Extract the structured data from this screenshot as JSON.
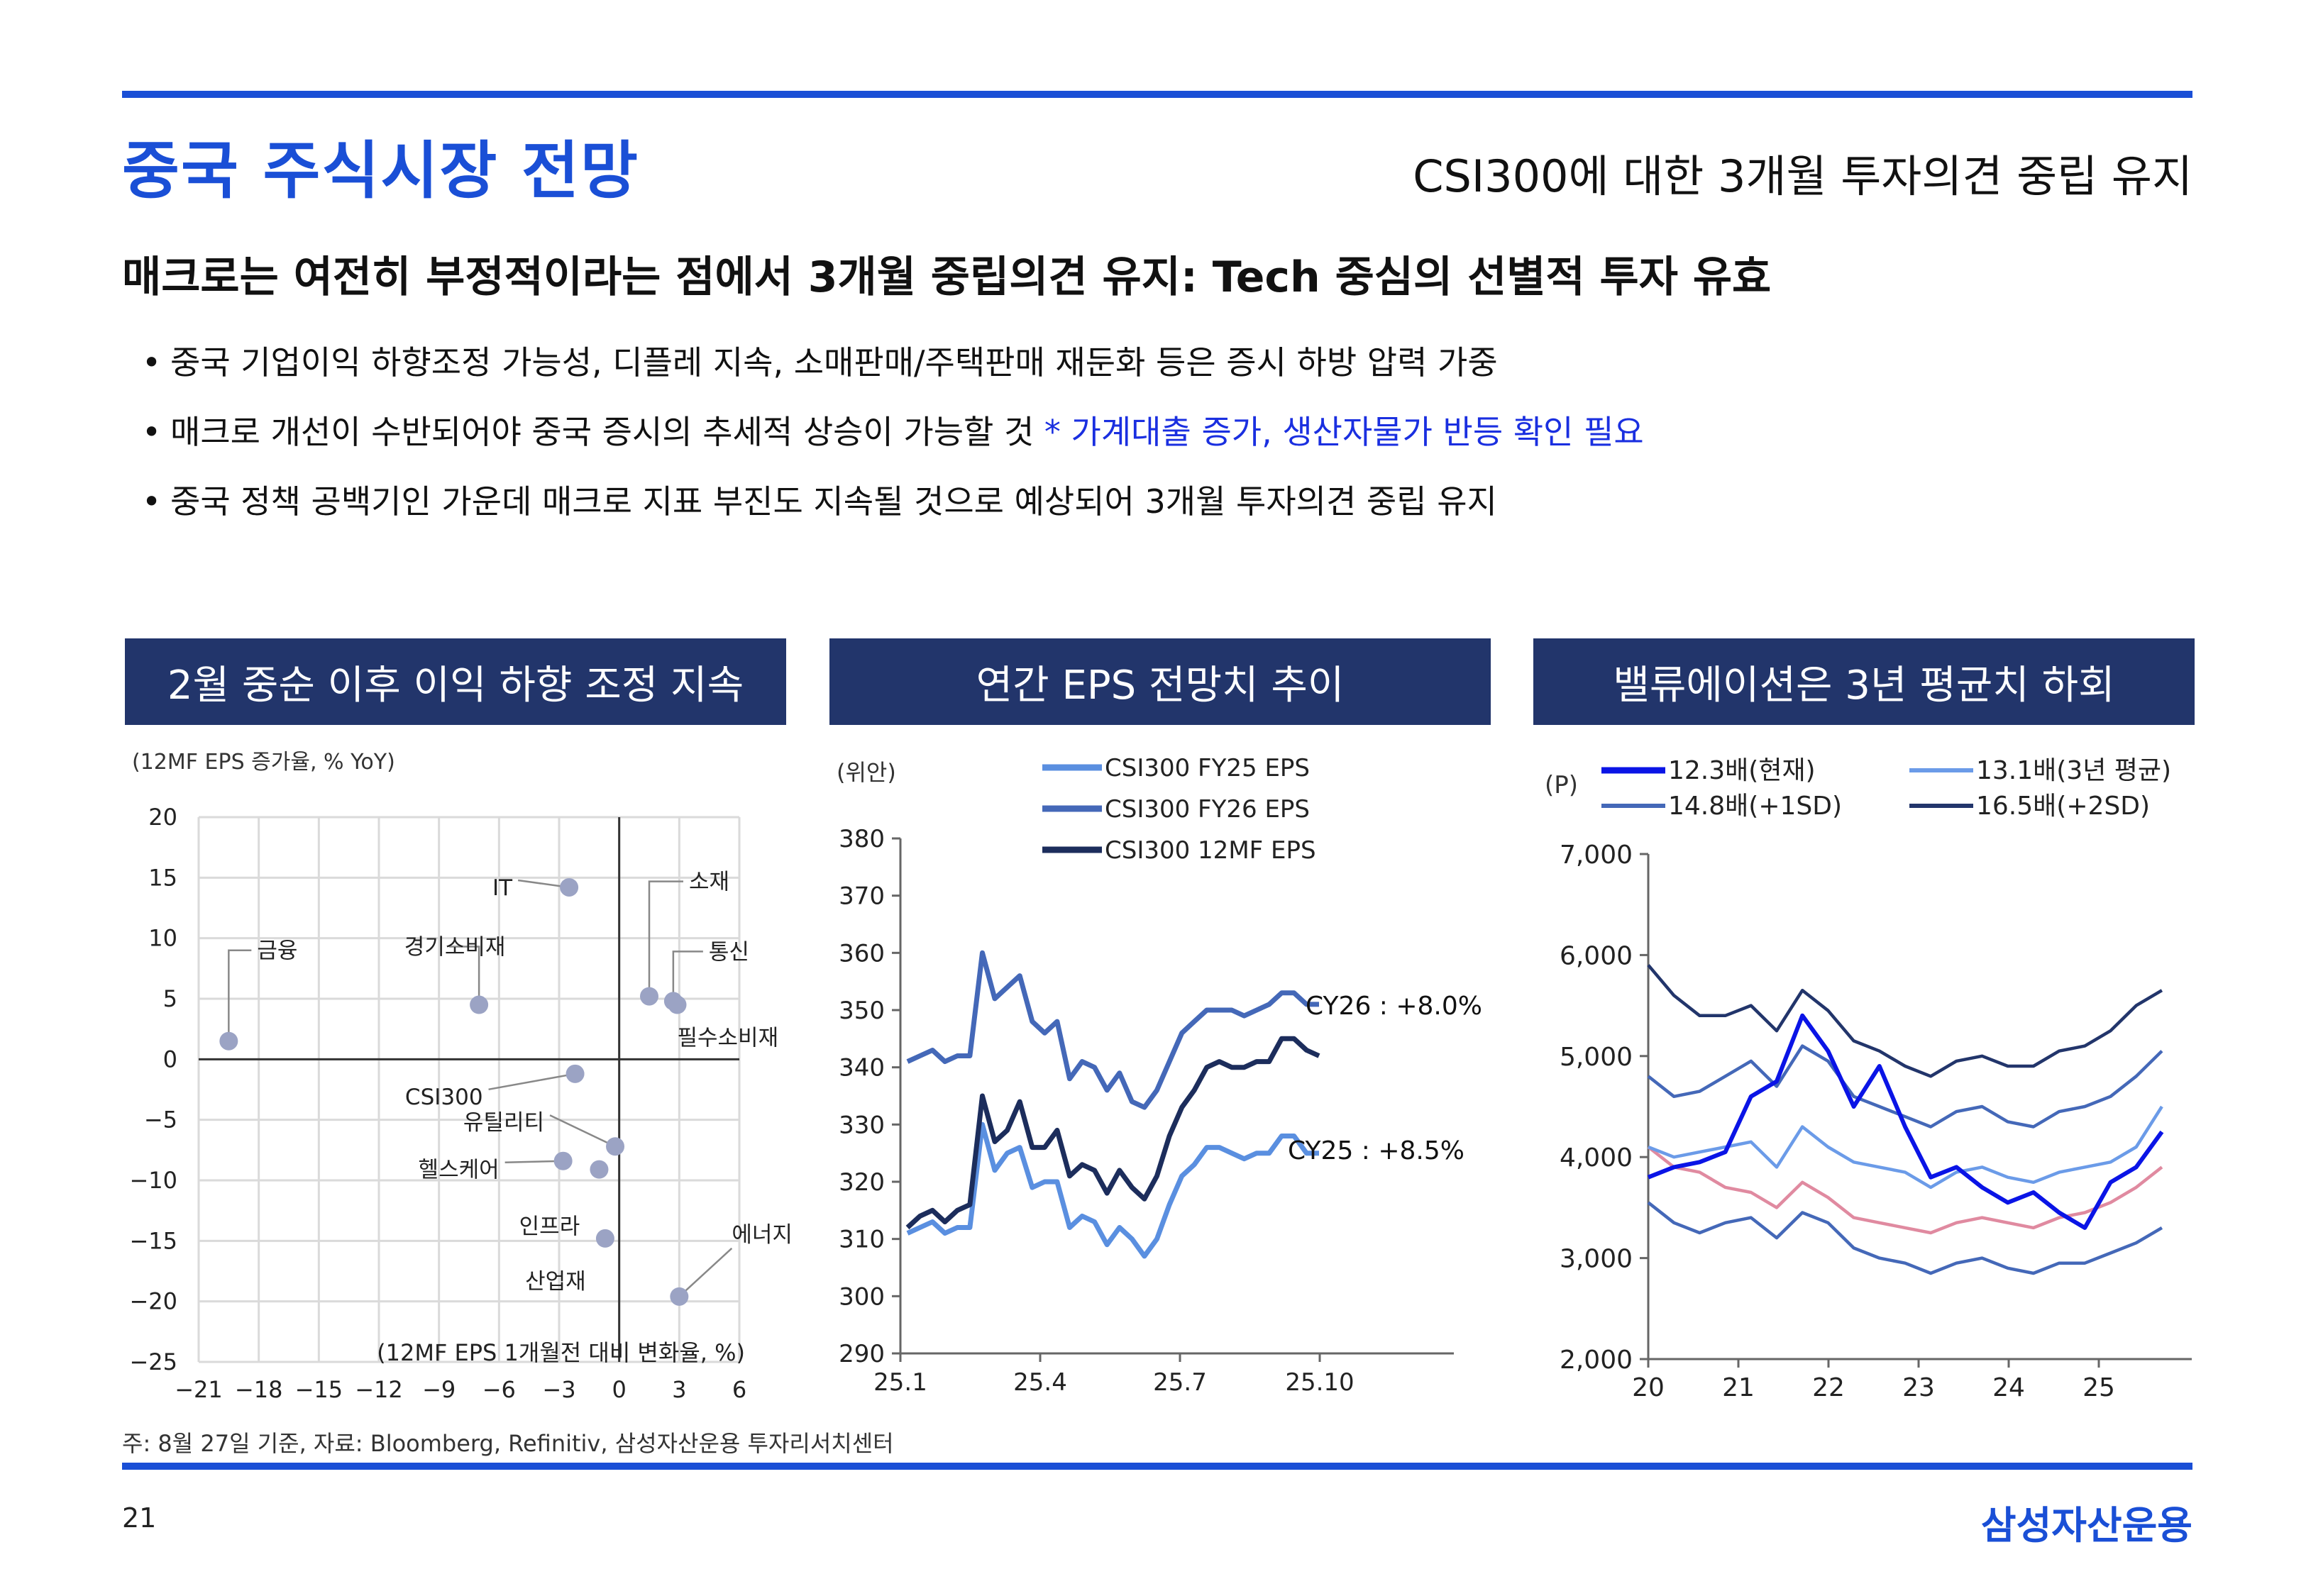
{
  "header": {
    "title": "중국 주식시장 전망",
    "subtitle": "CSI300에 대한 3개월 투자의견 중립 유지"
  },
  "headline": "매크로는 여전히 부정적이라는 점에서 3개월 중립의견 유지: Tech 중심의 선별적 투자 유효",
  "bullets": [
    {
      "text": "중국 기업이익 하향조정 가능성, 디플레 지속,  소매판매/주택판매 재둔화 등은 증시 하방 압력 가중",
      "highlight": ""
    },
    {
      "text": "매크로 개선이 수반되어야 중국 증시의 추세적 상승이 가능할 것 ",
      "highlight": "* 가계대출 증가, 생산자물가 반등 확인 필요"
    },
    {
      "text": "중국 정책 공백기인 가운데 매크로 지표 부진도 지속될 것으로 예상되어 3개월 투자의견 중립 유지",
      "highlight": ""
    }
  ],
  "panels": {
    "p1_title": "2월 중순 이후 이익 하향 조정 지속",
    "p2_title": "연간 EPS 전망치 추이",
    "p3_title": "밸류에이션은 3년 평균치 하회"
  },
  "colors": {
    "accent": "#1a4fd6",
    "panel_header": "#22356b",
    "highlight_text": "#1a2fe0",
    "scatter_point": "#9ba3c4"
  },
  "footer": {
    "note": "주: 8월 27일 기준, 자료: Bloomberg, Refinitiv, 삼성자산운용 투자리서치센터",
    "page_number": "21",
    "brand": "삼성자산운용"
  },
  "chart_data": [
    {
      "type": "scatter",
      "title": "2월 중순 이후 이익 하향 조정 지속",
      "ylabel": "(12MF EPS 증가율, % YoY)",
      "xlabel": "(12MF EPS 1개월전 대비 변화율, %)",
      "xlim": [
        -21,
        6
      ],
      "ylim": [
        -25,
        20
      ],
      "xticks": [
        -21,
        -18,
        -15,
        -12,
        -9,
        -6,
        -3,
        0,
        3,
        6
      ],
      "yticks": [
        20,
        15,
        10,
        5,
        0,
        -5,
        -10,
        -15,
        -20,
        -25
      ],
      "grid": true,
      "points": [
        {
          "label": "금융",
          "x": -19.5,
          "y": 1.5
        },
        {
          "label": "경기소비재",
          "x": -7.0,
          "y": 4.5
        },
        {
          "label": "IT",
          "x": -2.5,
          "y": 14.2
        },
        {
          "label": "소재",
          "x": 1.5,
          "y": 5.2
        },
        {
          "label": "통신",
          "x": 2.7,
          "y": 4.8
        },
        {
          "label": "필수소비재",
          "x": 2.9,
          "y": 4.5
        },
        {
          "label": "CSI300",
          "x": -2.2,
          "y": -1.2
        },
        {
          "label": "유틸리티",
          "x": -0.2,
          "y": -7.2
        },
        {
          "label": "헬스케어",
          "x": -2.8,
          "y": -8.4
        },
        {
          "label": "인프라",
          "x": -1.0,
          "y": -9.1
        },
        {
          "label": "산업재",
          "x": -0.7,
          "y": -14.8
        },
        {
          "label": "에너지",
          "x": 3.0,
          "y": -19.6
        }
      ]
    },
    {
      "type": "line",
      "title": "연간 EPS 전망치 추이",
      "ylabel": "(위안)",
      "ylim": [
        290,
        380
      ],
      "yticks": [
        380,
        370,
        360,
        350,
        340,
        330,
        320,
        310,
        300,
        290
      ],
      "xticks": [
        "25.1",
        "25.4",
        "25.7",
        "25.10"
      ],
      "legend": "top",
      "annotations": [
        "CY26 : +8.0%",
        "CY25 : +8.5%"
      ],
      "x": [
        "25.01",
        "25.01",
        "25.01",
        "25.01",
        "25.01",
        "25.02",
        "25.02",
        "25.02",
        "25.02",
        "25.03",
        "25.03",
        "25.03",
        "25.03",
        "25.04",
        "25.04",
        "25.04",
        "25.04",
        "25.05",
        "25.05",
        "25.05",
        "25.05",
        "25.06",
        "25.06",
        "25.06",
        "25.06",
        "25.07",
        "25.07",
        "25.07",
        "25.07",
        "25.08",
        "25.08",
        "25.08",
        "25.08",
        "25.08"
      ],
      "series": [
        {
          "name": "CSI300 FY25 EPS",
          "color": "#5a8fe0",
          "values": [
            311,
            312,
            313,
            311,
            312,
            312,
            330,
            322,
            325,
            326,
            319,
            320,
            320,
            312,
            314,
            313,
            309,
            312,
            310,
            307,
            310,
            316,
            321,
            323,
            326,
            326,
            325,
            324,
            325,
            325,
            328,
            328,
            325,
            325
          ]
        },
        {
          "name": "CSI300 FY26 EPS",
          "color": "#4468b8",
          "values": [
            341,
            342,
            343,
            341,
            342,
            342,
            360,
            352,
            354,
            356,
            348,
            346,
            348,
            338,
            341,
            340,
            336,
            339,
            334,
            333,
            336,
            341,
            346,
            348,
            350,
            350,
            350,
            349,
            350,
            351,
            353,
            353,
            351,
            351
          ]
        },
        {
          "name": "CSI300 12MF EPS",
          "color": "#1c2d5c",
          "values": [
            312,
            314,
            315,
            313,
            315,
            316,
            335,
            327,
            329,
            334,
            326,
            326,
            329,
            321,
            323,
            322,
            318,
            322,
            319,
            317,
            321,
            328,
            333,
            336,
            340,
            341,
            340,
            340,
            341,
            341,
            345,
            345,
            343,
            342
          ]
        }
      ]
    },
    {
      "type": "line",
      "title": "밸류에이션은 3년 평균치 하회",
      "ylabel": "(P)",
      "ylim": [
        2000,
        7000
      ],
      "yticks": [
        7000,
        6000,
        5000,
        4000,
        3000,
        2000
      ],
      "xticks": [
        "20",
        "21",
        "22",
        "23",
        "24",
        "25"
      ],
      "legend": "top",
      "series": [
        {
          "name": "12.3배(현재)",
          "color": "#0a14e6",
          "values": [
            3800,
            3900,
            3950,
            4050,
            4600,
            4750,
            5400,
            5050,
            4500,
            4900,
            4300,
            3800,
            3900,
            3700,
            3550,
            3650,
            3450,
            3300,
            3750,
            3900,
            4250
          ]
        },
        {
          "name": "13.1배(3년 평균)",
          "color": "#6b9be8",
          "values": [
            4100,
            4000,
            4050,
            4100,
            4150,
            3900,
            4300,
            4100,
            3950,
            3900,
            3850,
            3700,
            3850,
            3900,
            3800,
            3750,
            3850,
            3900,
            3950,
            4100,
            4500
          ]
        },
        {
          "name": "14.8배(+1SD)",
          "color": "#4468b8",
          "values": [
            4800,
            4600,
            4650,
            4800,
            4950,
            4700,
            5100,
            4950,
            4600,
            4500,
            4400,
            4300,
            4450,
            4500,
            4350,
            4300,
            4450,
            4500,
            4600,
            4800,
            5050
          ]
        },
        {
          "name": "16.5배(+2SD)",
          "color": "#22356b",
          "values": [
            5900,
            5600,
            5400,
            5400,
            5500,
            5250,
            5650,
            5450,
            5150,
            5050,
            4900,
            4800,
            4950,
            5000,
            4900,
            4900,
            5050,
            5100,
            5250,
            5500,
            5650
          ]
        },
        {
          "name": "",
          "color": "#4468b8",
          "values": [
            3550,
            3350,
            3250,
            3350,
            3400,
            3200,
            3450,
            3350,
            3100,
            3000,
            2950,
            2850,
            2950,
            3000,
            2900,
            2850,
            2950,
            2950,
            3050,
            3150,
            3300
          ]
        },
        {
          "name": "",
          "color": "#e08aa0",
          "values": [
            4100,
            3900,
            3850,
            3700,
            3650,
            3500,
            3750,
            3600,
            3400,
            3350,
            3300,
            3250,
            3350,
            3400,
            3350,
            3300,
            3400,
            3450,
            3550,
            3700,
            3900
          ]
        }
      ]
    }
  ]
}
